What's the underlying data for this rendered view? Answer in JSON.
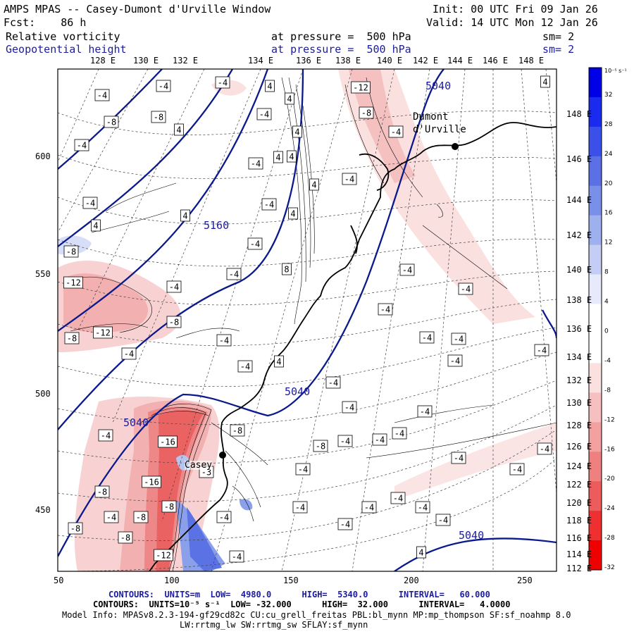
{
  "header": {
    "title": "AMPS MPAS -- Casey-Dumont d'Urville Window",
    "init": "Init: 00 UTC Fri 09 Jan 26",
    "fcst": "Fcst:    86 h",
    "valid": "Valid: 14 UTC Mon 12 Jan 26",
    "field1": "Relative vorticity",
    "field1_level": "at pressure =  500 hPa",
    "field1_sm": "sm= 2",
    "field2": "Geopotential height",
    "field2_level": "at pressure =  500 hPa",
    "field2_sm": "sm= 2"
  },
  "lon_labels": [
    "128 E",
    "130 E",
    "132 E",
    "134 E",
    "136 E",
    "138 E",
    "140 E",
    "142 E",
    "144 E",
    "146 E",
    "148 E"
  ],
  "lat_labels": [
    "148 E",
    "146 E",
    "144 E",
    "142 E",
    "140 E",
    "138 E",
    "136 E",
    "134 E",
    "132 E",
    "130 E",
    "128 E",
    "126 E",
    "124 E",
    "122 E",
    "120 E",
    "118 E",
    "116 E",
    "114 E",
    "112 E"
  ],
  "x_ticks": [
    "50",
    "100",
    "150",
    "200",
    "250"
  ],
  "y_ticks": [
    "600",
    "550",
    "500",
    "450"
  ],
  "colorbar": {
    "unit": "10⁻⁵ s⁻¹",
    "labels": [
      "32",
      "28",
      "24",
      "20",
      "16",
      "12",
      "8",
      "4",
      "0",
      "-4",
      "-8",
      "-12",
      "-16",
      "-20",
      "-24",
      "-28",
      "-32"
    ],
    "colors": [
      "#0000e6",
      "#1a2aee",
      "#3a50e8",
      "#5a70e4",
      "#7a90e8",
      "#9eb0ee",
      "#c4cef4",
      "#e6eafa",
      "#ffffff",
      "#ffffff",
      "#fbe0e0",
      "#f6c0c0",
      "#f2a0a0",
      "#ee8080",
      "#ec5c5c",
      "#ee3030",
      "#f00000"
    ]
  },
  "places": {
    "dumont": "Dumont\nd'Urville",
    "casey": "Casey"
  },
  "height_labels": [
    "5040",
    "5160",
    "5040",
    "5040",
    "5040"
  ],
  "vort_labels": [
    {
      "t": "-4",
      "x": 145,
      "y": 135
    },
    {
      "t": "-4",
      "x": 232,
      "y": 122
    },
    {
      "t": "-4",
      "x": 316,
      "y": 117
    },
    {
      "t": "4",
      "x": 383,
      "y": 122
    },
    {
      "t": "4",
      "x": 411,
      "y": 140
    },
    {
      "t": "-12",
      "x": 512,
      "y": 124
    },
    {
      "t": "-8",
      "x": 520,
      "y": 160
    },
    {
      "t": "4",
      "x": 774,
      "y": 116
    },
    {
      "t": "-8",
      "x": 158,
      "y": 173
    },
    {
      "t": "-8",
      "x": 225,
      "y": 166
    },
    {
      "t": "4",
      "x": 254,
      "y": 184
    },
    {
      "t": "-4",
      "x": 375,
      "y": 162
    },
    {
      "t": "4",
      "x": 422,
      "y": 187
    },
    {
      "t": "-4",
      "x": 562,
      "y": 187
    },
    {
      "t": "-4",
      "x": 116,
      "y": 206
    },
    {
      "t": "-4",
      "x": 363,
      "y": 232
    },
    {
      "t": "4",
      "x": 395,
      "y": 223
    },
    {
      "t": "4",
      "x": 414,
      "y": 222
    },
    {
      "t": "-4",
      "x": 496,
      "y": 254
    },
    {
      "t": "4",
      "x": 446,
      "y": 262
    },
    {
      "t": "-4",
      "x": 128,
      "y": 288
    },
    {
      "t": "4",
      "x": 263,
      "y": 306
    },
    {
      "t": "-4",
      "x": 382,
      "y": 290
    },
    {
      "t": "4",
      "x": 416,
      "y": 303
    },
    {
      "t": "4",
      "x": 136,
      "y": 320
    },
    {
      "t": "-8",
      "x": 101,
      "y": 357
    },
    {
      "t": "-4",
      "x": 362,
      "y": 346
    },
    {
      "t": "-4",
      "x": 332,
      "y": 389
    },
    {
      "t": "8",
      "x": 407,
      "y": 382
    },
    {
      "t": "-4",
      "x": 578,
      "y": 383
    },
    {
      "t": "-12",
      "x": 104,
      "y": 401
    },
    {
      "t": "-4",
      "x": 247,
      "y": 407
    },
    {
      "t": "-4",
      "x": 661,
      "y": 410
    },
    {
      "t": "-4",
      "x": 547,
      "y": 439
    },
    {
      "t": "-8",
      "x": 247,
      "y": 457
    },
    {
      "t": "-12",
      "x": 146,
      "y": 472
    },
    {
      "t": "-8",
      "x": 102,
      "y": 480
    },
    {
      "t": "-4",
      "x": 318,
      "y": 483
    },
    {
      "t": "-4",
      "x": 606,
      "y": 479
    },
    {
      "t": "-4",
      "x": 651,
      "y": 481
    },
    {
      "t": "-4",
      "x": 183,
      "y": 502
    },
    {
      "t": "4",
      "x": 396,
      "y": 513
    },
    {
      "t": "-4",
      "x": 348,
      "y": 520
    },
    {
      "t": "-4",
      "x": 646,
      "y": 512
    },
    {
      "t": "-4",
      "x": 769,
      "y": 497
    },
    {
      "t": "-4",
      "x": 473,
      "y": 543
    },
    {
      "t": "-4",
      "x": 496,
      "y": 578
    },
    {
      "t": "-4",
      "x": 603,
      "y": 584
    },
    {
      "t": "-8",
      "x": 337,
      "y": 611
    },
    {
      "t": "-4",
      "x": 567,
      "y": 615
    },
    {
      "t": "-4",
      "x": 150,
      "y": 618
    },
    {
      "t": "-16",
      "x": 238,
      "y": 627
    },
    {
      "t": "-8",
      "x": 455,
      "y": 633
    },
    {
      "t": "-4",
      "x": 490,
      "y": 626
    },
    {
      "t": "-4",
      "x": 539,
      "y": 624
    },
    {
      "t": "-4",
      "x": 773,
      "y": 637
    },
    {
      "t": "-4",
      "x": 651,
      "y": 650
    },
    {
      "t": "-3",
      "x": 293,
      "y": 670
    },
    {
      "t": "-4",
      "x": 430,
      "y": 666
    },
    {
      "t": "-4",
      "x": 734,
      "y": 666
    },
    {
      "t": "-16",
      "x": 215,
      "y": 684
    },
    {
      "t": "-8",
      "x": 145,
      "y": 698
    },
    {
      "t": "-4",
      "x": 565,
      "y": 707
    },
    {
      "t": "-8",
      "x": 240,
      "y": 719
    },
    {
      "t": "-4",
      "x": 426,
      "y": 720
    },
    {
      "t": "-4",
      "x": 524,
      "y": 720
    },
    {
      "t": "-4",
      "x": 600,
      "y": 720
    },
    {
      "t": "-4",
      "x": 158,
      "y": 734
    },
    {
      "t": "-8",
      "x": 200,
      "y": 734
    },
    {
      "t": "-4",
      "x": 318,
      "y": 734
    },
    {
      "t": "-8",
      "x": 107,
      "y": 750
    },
    {
      "t": "-4",
      "x": 490,
      "y": 744
    },
    {
      "t": "-4",
      "x": 629,
      "y": 738
    },
    {
      "t": "-8",
      "x": 178,
      "y": 763
    },
    {
      "t": "4",
      "x": 598,
      "y": 784
    },
    {
      "t": "-12",
      "x": 232,
      "y": 788
    },
    {
      "t": "-4",
      "x": 336,
      "y": 790
    }
  ],
  "footer": {
    "line1_label": "CONTOURS:  UNITS=m  LOW=  4980.0      HIGH=  5340.0      INTERVAL=   60.000",
    "line2_label": "CONTOURS:  UNITS=10⁻⁵ s⁻¹  LOW= -32.000      HIGH=  32.000      INTERVAL=   4.0000",
    "model_info": "Model Info: MPASv8.2.3-194-gf29cd82c CU:cu_grell_freitas PBL:bl_mynn MP:mp_thompson SF:sf_noahmp 8.0",
    "model_info2": "LW:rrtmg_lw SW:rrtmg_sw SFLAY:sf_mynn"
  },
  "colors": {
    "height": "#0a1a8c",
    "coast": "#000000",
    "frame": "#000000"
  }
}
